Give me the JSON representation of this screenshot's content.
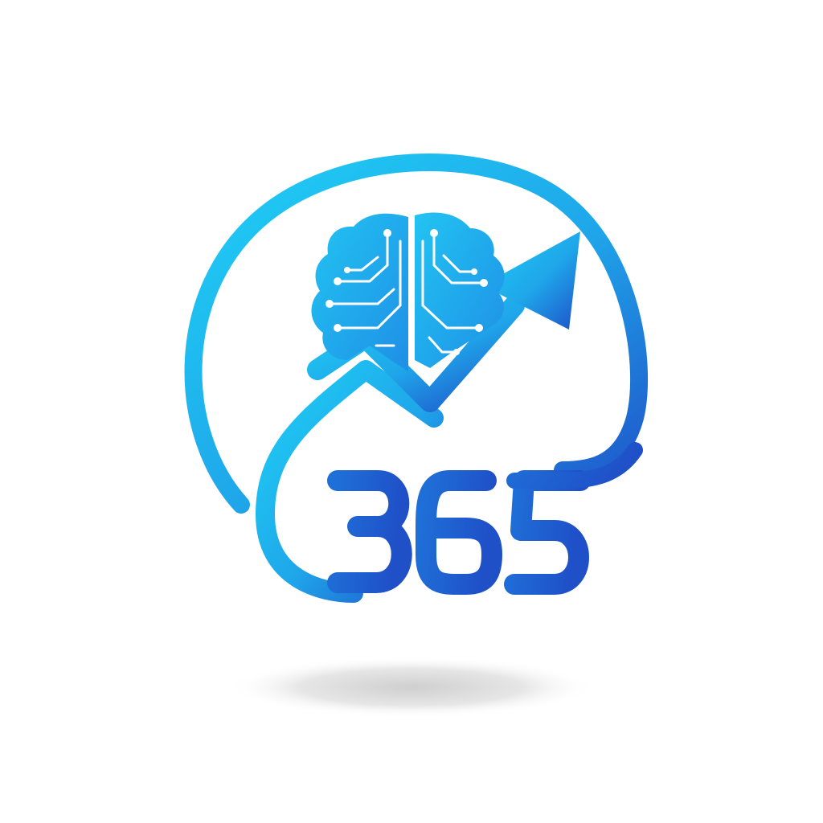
{
  "logo": {
    "wordmark": "365",
    "icon": "brain-circuit-icon",
    "arrow_icon": "trend-up-arrow-icon"
  },
  "colors": {
    "light": "#1fd0f5",
    "mid": "#1fa6ea",
    "dark": "#1f50c8",
    "shadow": "#d8d8d8"
  }
}
